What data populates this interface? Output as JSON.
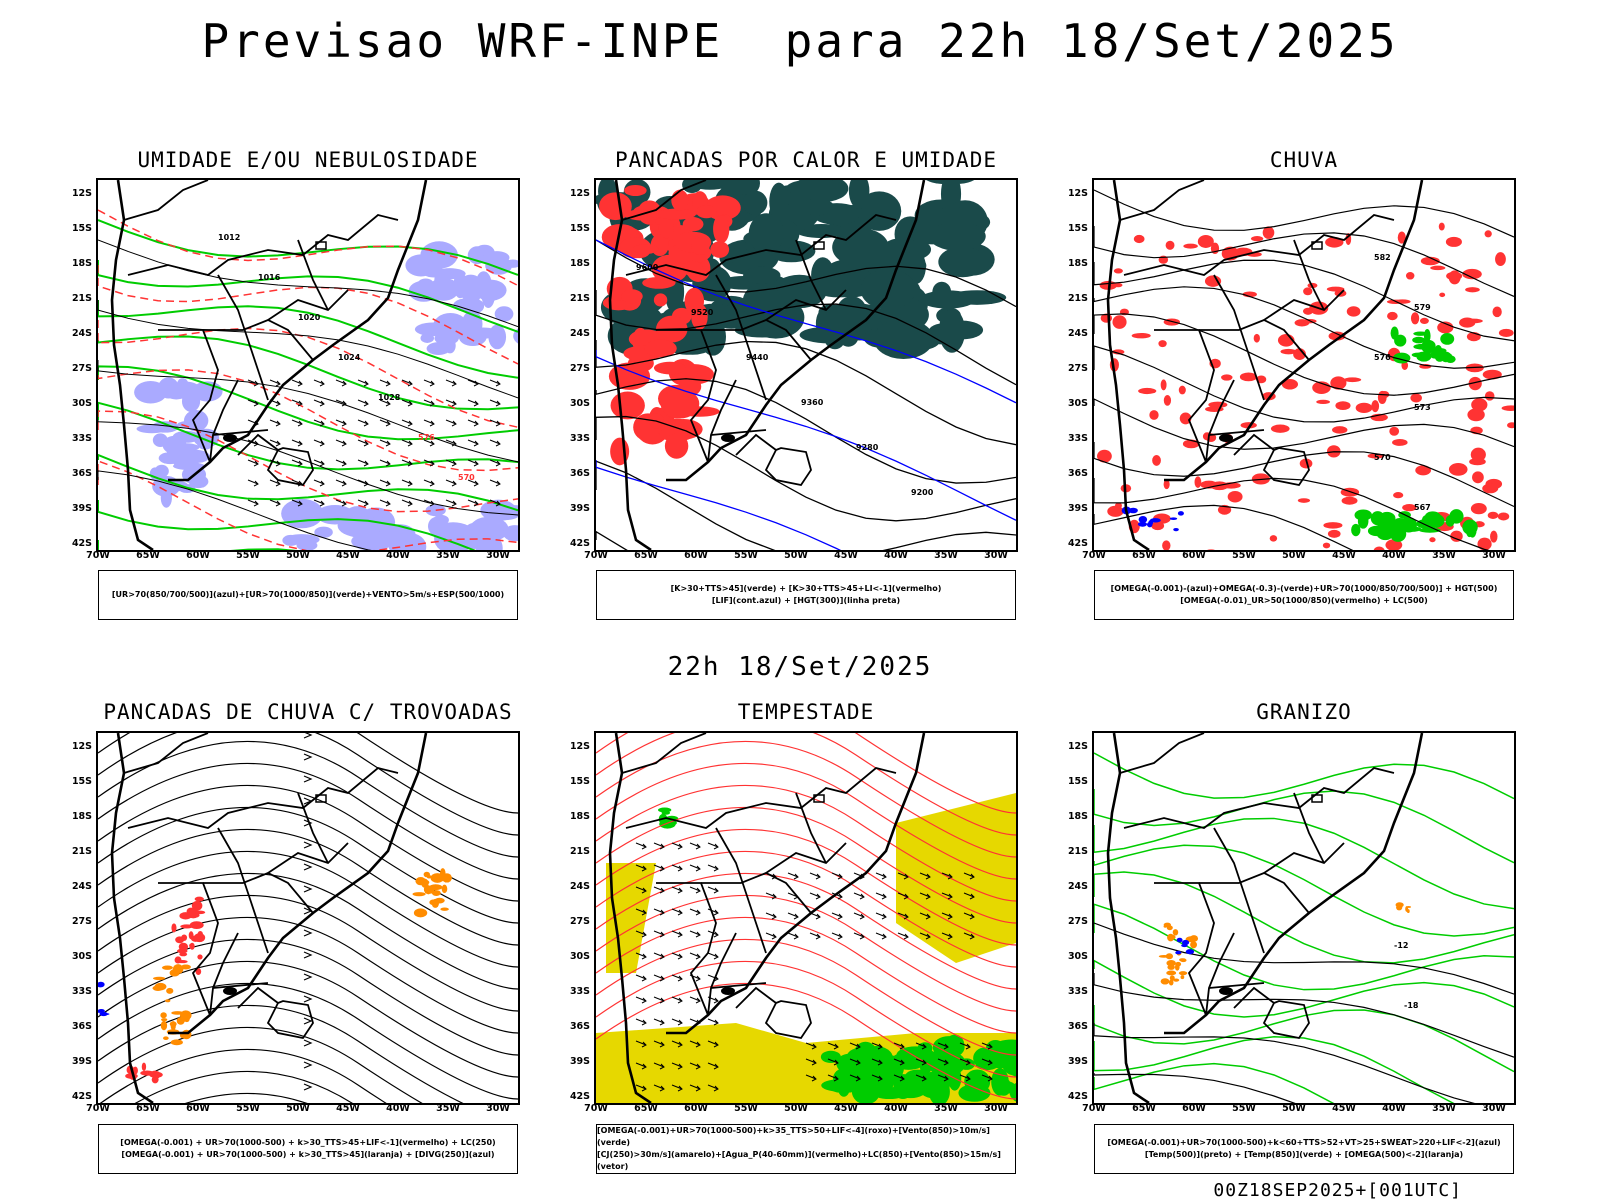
{
  "title": "Previsao WRF-INPE  para 22h 18/Set/2025",
  "subtitle": "22h 18/Set/2025",
  "footer": "00Z18SEP2025+[001UTC]",
  "lat_labels": [
    "12S",
    "15S",
    "18S",
    "21S",
    "24S",
    "27S",
    "30S",
    "33S",
    "36S",
    "39S",
    "42S"
  ],
  "lon_labels": [
    "70W",
    "65W",
    "60W",
    "55W",
    "50W",
    "45W",
    "40W",
    "35W",
    "30W"
  ],
  "colors": {
    "blue_fill": "#aaaaff",
    "green": "#00cc00",
    "red": "#ff3333",
    "dark_teal": "#1a4a4a",
    "yellow": "#e6d800",
    "orange": "#ff8c00",
    "blue": "#0000ff",
    "black": "#000000"
  },
  "panels": [
    {
      "title": "UMIDADE E/OU NEBULOSIDADE",
      "legend": [
        "[UR>70(850/700/500)](azul)+[UR>70(1000/850)](verde)+VENTO>5m/s+ESP(500/1000)"
      ],
      "contour_labels": [
        "1012",
        "1016",
        "1020",
        "1024",
        "1028",
        "576",
        "570"
      ]
    },
    {
      "title": "PANCADAS POR CALOR E UMIDADE",
      "legend": [
        "[K>30+TTS>45](verde) + [K>30+TTS>45+LI<-1](vermelho)",
        "[LIF](cont.azul) + [HGT(300)](linha preta)"
      ],
      "contour_labels": [
        "9600",
        "9520",
        "9440",
        "9360",
        "9280",
        "9200"
      ]
    },
    {
      "title": "CHUVA",
      "legend": [
        "[OMEGA(-0.001)-(azul)+OMEGA(-0.3)-(verde)+UR>70(1000/850/700/500)] + HGT(500)",
        "[OMEGA(-0.01)_UR>50(1000/850)(vermelho) + LC(500)"
      ],
      "contour_labels": [
        "582",
        "579",
        "576",
        "573",
        "570",
        "567"
      ]
    },
    {
      "title": "PANCADAS DE CHUVA C/ TROVOADAS",
      "legend": [
        "[OMEGA(-0.001) + UR>70(1000-500) + k>30_TTS>45+LIF<-1](vermelho) + LC(250)",
        "[OMEGA(-0.001) + UR>70(1000-500) + k>30_TTS>45](laranja) + [DIVG(250)](azul)"
      ],
      "contour_labels": []
    },
    {
      "title": "TEMPESTADE",
      "legend": [
        "[OMEGA(-0.001)+UR>70(1000-500)+k>35_TTS>50+LIF<-4](roxo)+[Vento(850)>10m/s](verde)",
        "[CJ(250)>30m/s](amarelo)+[Agua_P(40-60mm)](vermelho)+LC(850)+[Vento(850)>15m/s](vetor)"
      ],
      "contour_labels": []
    },
    {
      "title": "GRANIZO",
      "legend": [
        "[OMEGA(-0.001)+UR>70(1000-500)+k<60+TTS>52+VT>25+SWEAT>220+LIF<-2](azul)",
        "[Temp(500)](preto) + [Temp(850)](verde) + [OMEGA(500)<-2](laranja)"
      ],
      "contour_labels": [
        "-12",
        "-18"
      ]
    }
  ]
}
